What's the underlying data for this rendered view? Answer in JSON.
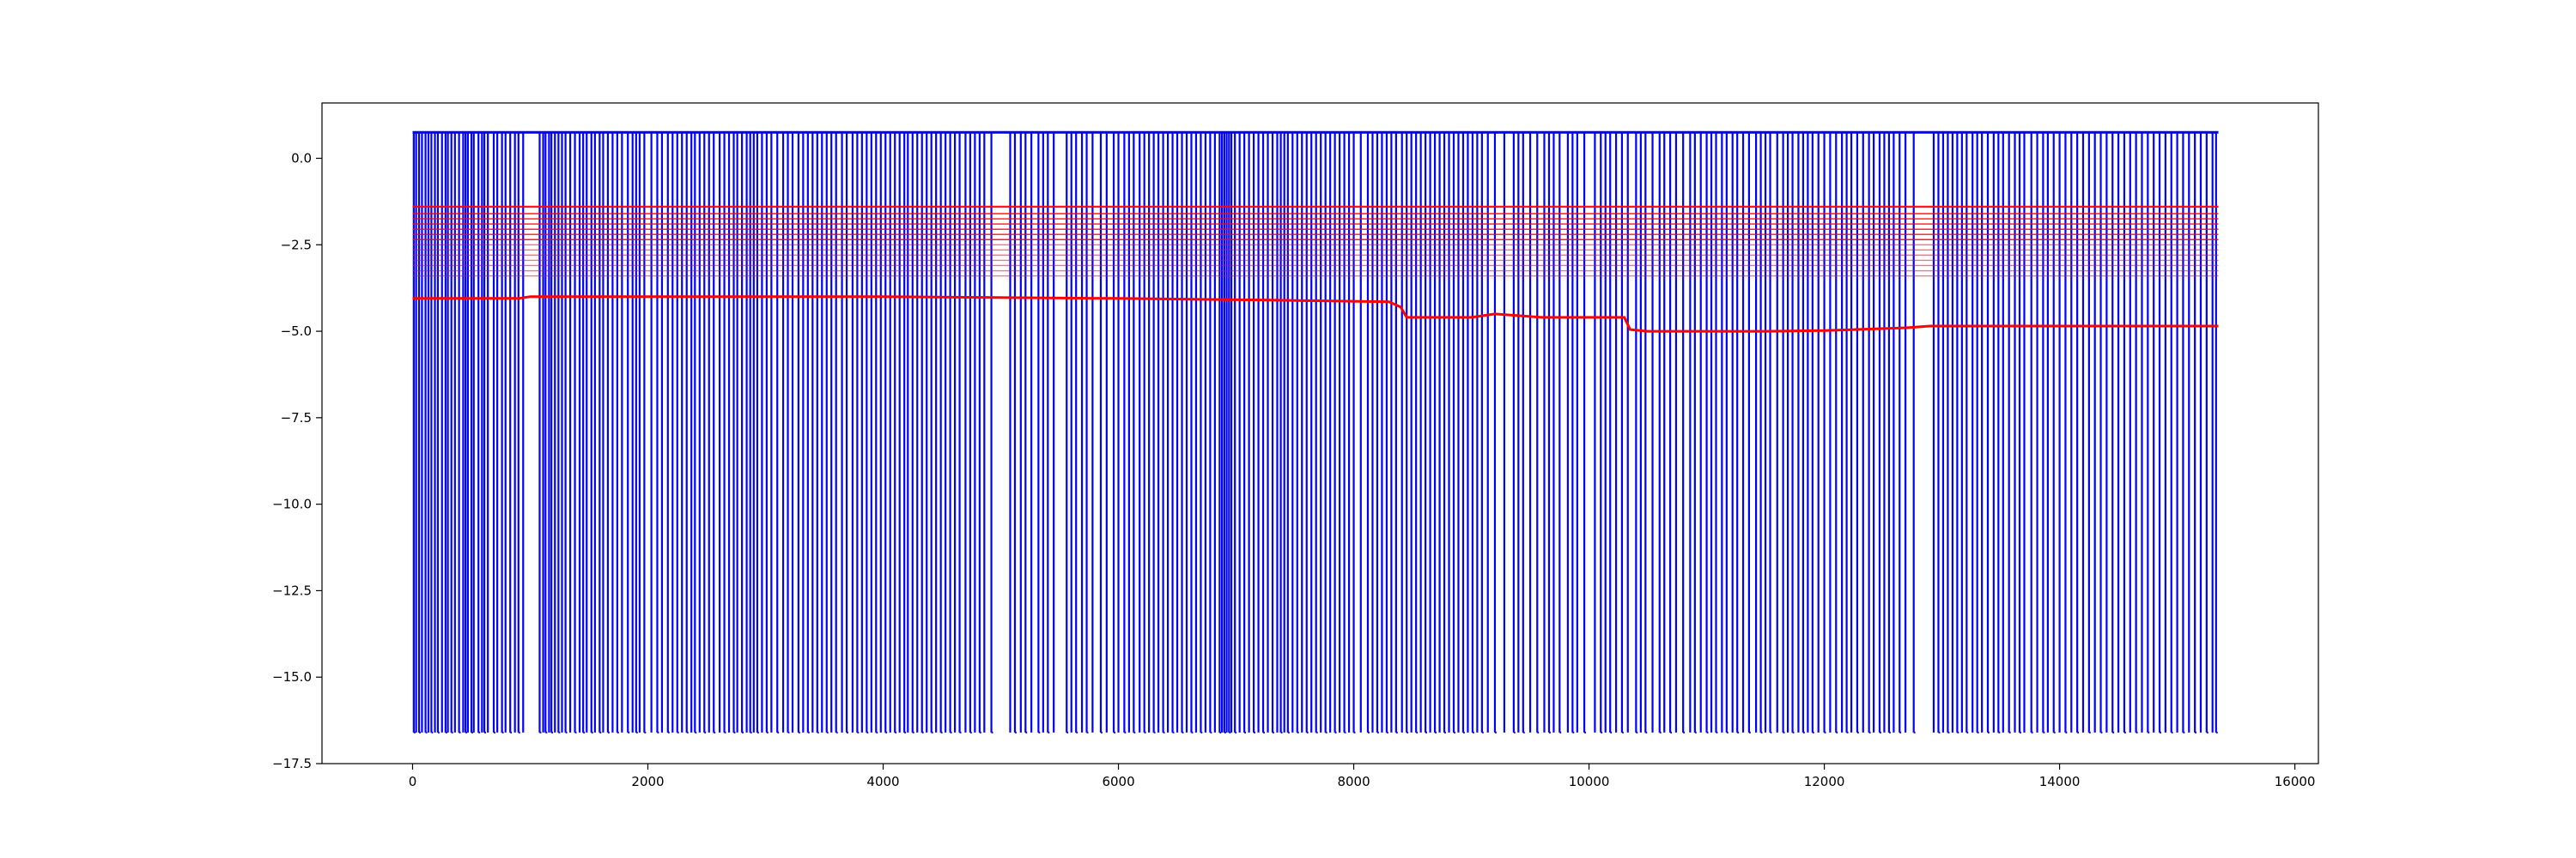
{
  "chart_data": {
    "type": "line",
    "title": "",
    "xlabel": "",
    "ylabel": "",
    "xlim": [
      -770,
      16200
    ],
    "ylim": [
      -17.5,
      1.6
    ],
    "grid": false,
    "legend": "none",
    "x_ticks": [
      0,
      2000,
      4000,
      6000,
      8000,
      10000,
      12000,
      14000,
      16000
    ],
    "x_tick_labels": [
      "0",
      "2000",
      "4000",
      "6000",
      "8000",
      "10000",
      "12000",
      "14000",
      "16000"
    ],
    "y_ticks": [
      0.0,
      -2.5,
      -5.0,
      -7.5,
      -10.0,
      -12.5,
      -15.0,
      -17.5
    ],
    "y_tick_labels": [
      "0.0",
      "−2.5",
      "−5.0",
      "−7.5",
      "−10.0",
      "−12.5",
      "−15.0",
      "−17.5"
    ],
    "series": [
      {
        "color": "#0000ff",
        "kind": "binary-spikes",
        "high": 0.75,
        "low": -16.6,
        "x_range": [
          0,
          15350
        ],
        "spike_x": [
          10,
          30,
          55,
          80,
          110,
          135,
          160,
          190,
          215,
          250,
          280,
          300,
          330,
          360,
          395,
          430,
          450,
          470,
          500,
          520,
          560,
          590,
          610,
          640,
          690,
          720,
          760,
          790,
          830,
          870,
          900,
          940,
          1080,
          1110,
          1130,
          1160,
          1180,
          1210,
          1240,
          1270,
          1300,
          1340,
          1380,
          1420,
          1450,
          1480,
          1520,
          1550,
          1590,
          1620,
          1660,
          1700,
          1740,
          1780,
          1830,
          1870,
          1900,
          1930,
          1970,
          2030,
          2080,
          2120,
          2170,
          2210,
          2250,
          2290,
          2330,
          2370,
          2400,
          2440,
          2480,
          2520,
          2560,
          2610,
          2650,
          2690,
          2730,
          2760,
          2800,
          2840,
          2870,
          2900,
          2930,
          2970,
          3010,
          3050,
          3100,
          3150,
          3190,
          3230,
          3280,
          3320,
          3360,
          3400,
          3440,
          3480,
          3520,
          3560,
          3600,
          3650,
          3690,
          3740,
          3780,
          3820,
          3860,
          3900,
          3940,
          3980,
          4020,
          4060,
          4100,
          4140,
          4180,
          4210,
          4250,
          4290,
          4330,
          4370,
          4410,
          4450,
          4490,
          4530,
          4570,
          4610,
          4650,
          4700,
          4740,
          4780,
          4820,
          4860,
          4920,
          5080,
          5120,
          5170,
          5210,
          5260,
          5320,
          5360,
          5400,
          5450,
          5560,
          5600,
          5640,
          5690,
          5730,
          5780,
          5850,
          5900,
          5960,
          6000,
          6050,
          6090,
          6130,
          6180,
          6220,
          6260,
          6300,
          6340,
          6380,
          6420,
          6460,
          6500,
          6540,
          6580,
          6620,
          6660,
          6700,
          6740,
          6780,
          6820,
          6860,
          6880,
          6900,
          6920,
          6940,
          6960,
          6990,
          7030,
          7070,
          7110,
          7150,
          7190,
          7230,
          7270,
          7310,
          7350,
          7380,
          7410,
          7440,
          7480,
          7520,
          7560,
          7600,
          7640,
          7680,
          7720,
          7760,
          7800,
          7840,
          7880,
          7920,
          7960,
          8000,
          8060,
          8120,
          8160,
          8200,
          8240,
          8280,
          8320,
          8360,
          8410,
          8450,
          8490,
          8530,
          8570,
          8610,
          8650,
          8690,
          8730,
          8770,
          8810,
          8850,
          8890,
          8930,
          8970,
          9010,
          9050,
          9090,
          9140,
          9200,
          9280,
          9360,
          9400,
          9440,
          9500,
          9560,
          9620,
          9660,
          9700,
          9750,
          9820,
          9860,
          9900,
          9960,
          10050,
          10100,
          10140,
          10180,
          10230,
          10280,
          10330,
          10400,
          10440,
          10480,
          10540,
          10600,
          10640,
          10690,
          10740,
          10800,
          10860,
          10900,
          10950,
          11000,
          11040,
          11080,
          11130,
          11170,
          11220,
          11260,
          11310,
          11360,
          11420,
          11460,
          11500,
          11540,
          11600,
          11650,
          11690,
          11730,
          11780,
          11820,
          11860,
          11900,
          11950,
          12000,
          12050,
          12100,
          12150,
          12190,
          12230,
          12280,
          12330,
          12380,
          12420,
          12470,
          12510,
          12550,
          12590,
          12640,
          12690,
          12760,
          12930,
          12970,
          13010,
          13050,
          13090,
          13130,
          13170,
          13210,
          13260,
          13300,
          13340,
          13390,
          13440,
          13480,
          13520,
          13570,
          13620,
          13660,
          13700,
          13760,
          13810,
          13860,
          13900,
          13950,
          14000,
          14050,
          14100,
          14150,
          14200,
          14250,
          14300,
          14350,
          14400,
          14450,
          14500,
          14550,
          14600,
          14650,
          14700,
          14750,
          14800,
          14850,
          14900,
          14950,
          15000,
          15050,
          15100,
          15150,
          15200,
          15250,
          15300,
          15330
        ]
      },
      {
        "color": "#ff0000",
        "kind": "flat-lines",
        "x_range": [
          0,
          15350
        ],
        "levels": [
          -1.4,
          -1.6,
          -1.75,
          -1.9,
          -2.05,
          -2.2,
          -2.35,
          -2.5,
          -2.65,
          -2.8,
          -2.95,
          -3.1,
          -3.25,
          -3.4
        ]
      },
      {
        "color": "#ff0000",
        "kind": "step-line",
        "x": [
          0,
          900,
          1000,
          4000,
          6000,
          7300,
          8300,
          8400,
          8450,
          9000,
          9200,
          9400,
          9600,
          10300,
          10350,
          10500,
          11500,
          12000,
          12700,
          12900,
          15350
        ],
        "values": [
          -4.05,
          -4.05,
          -4.0,
          -4.0,
          -4.05,
          -4.1,
          -4.15,
          -4.3,
          -4.6,
          -4.6,
          -4.5,
          -4.55,
          -4.6,
          -4.6,
          -4.95,
          -5.0,
          -5.0,
          -4.98,
          -4.9,
          -4.85,
          -4.85
        ]
      }
    ]
  }
}
